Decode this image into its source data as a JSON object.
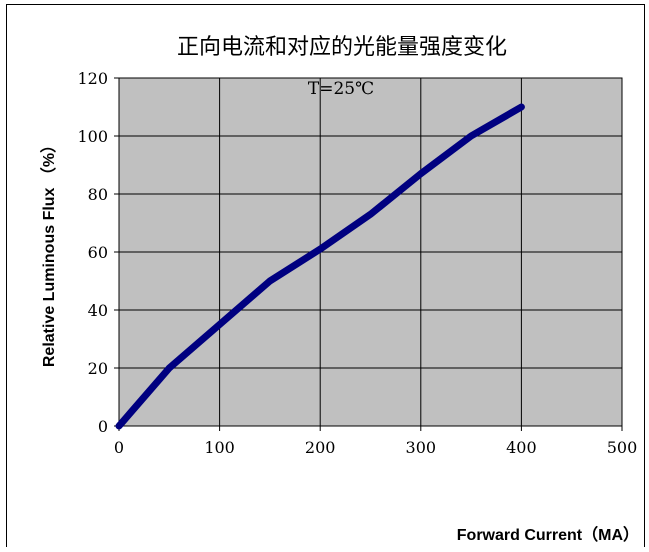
{
  "chart_data": {
    "type": "line",
    "title": "正向电流和对应的光能量强度变化",
    "subtitle": "T=25℃",
    "xlabel": "Forward Current（MA）",
    "ylabel": "Relative Luminous Flux （%）",
    "xlim": [
      0,
      500
    ],
    "ylim": [
      0,
      120
    ],
    "xticks": [
      0,
      100,
      200,
      300,
      400,
      500
    ],
    "yticks": [
      0,
      20,
      40,
      60,
      80,
      100,
      120
    ],
    "grid": true,
    "plot_background": "#c0c0c0",
    "series": [
      {
        "color": "#000080",
        "x": [
          0,
          50,
          100,
          150,
          200,
          250,
          300,
          350,
          400
        ],
        "y": [
          0,
          20,
          35,
          50,
          61,
          73,
          87,
          100,
          110
        ]
      }
    ]
  }
}
